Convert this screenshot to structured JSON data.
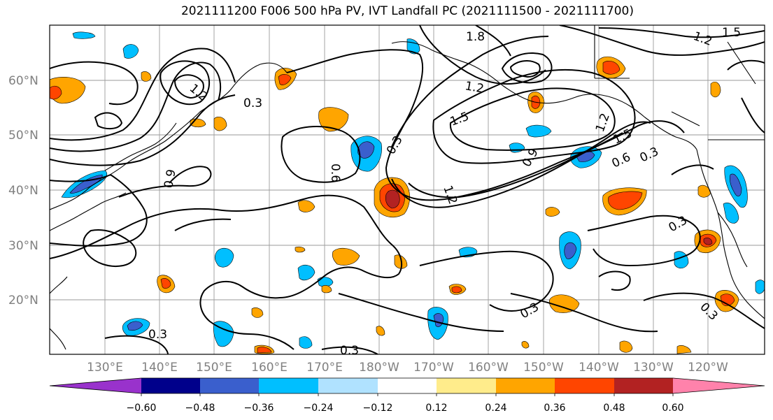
{
  "title": "2021111200 F006 500 hPa PV, IVT Landfall PC (2021111500 - 2021111700)",
  "lat_labels": [
    "20°N",
    "30°N",
    "40°N",
    "50°N",
    "60°N"
  ],
  "lon_labels": [
    "130°E",
    "140°E",
    "150°E",
    "160°E",
    "170°E",
    "180°W",
    "170°W",
    "160°W",
    "150°W",
    "140°W",
    "130°W",
    "120°W"
  ],
  "contour_labels": [
    "0.3",
    "0.3",
    "0.3",
    "0.3",
    "0.3",
    "0.3",
    "0.3",
    "0.3",
    "0.6",
    "0.6",
    "0.9",
    "0.9",
    "1.2",
    "1.2",
    "1.2",
    "1.2",
    "1.5",
    "1.5",
    "1.5",
    "1.8",
    "1.2"
  ],
  "colorbar": {
    "ticks": [
      "−0.60",
      "−0.48",
      "−0.36",
      "−0.24",
      "−0.12",
      "0.12",
      "0.24",
      "0.36",
      "0.48",
      "0.60"
    ],
    "colors": [
      "#9932cc",
      "#00008b",
      "#3a5fcd",
      "#00bfff",
      "#b0e2ff",
      "#ffffff",
      "#ffec8b",
      "#ffa500",
      "#ff4500",
      "#b22222",
      "#ff82ab"
    ]
  },
  "colors": {
    "grid": "#999999",
    "frame": "#000000",
    "coast": "#000000"
  }
}
